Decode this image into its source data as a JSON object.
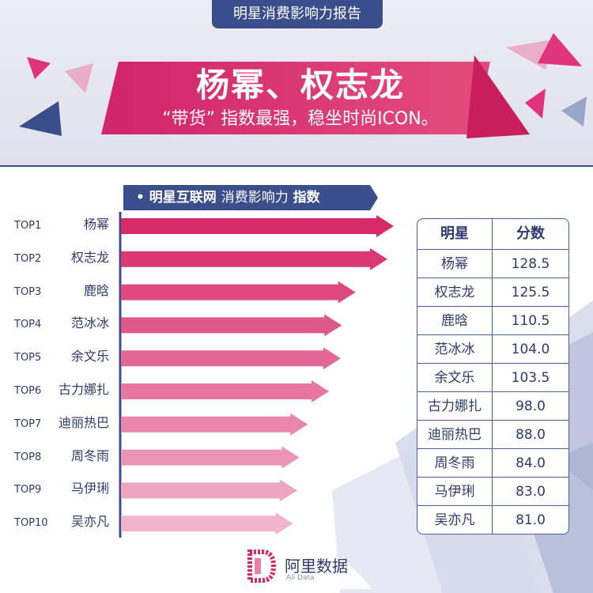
{
  "header": {
    "tag": "明星消费影响力报告",
    "title": "杨幂、权志龙",
    "subtitle": "“带货” 指数最强，稳坐时尚ICON。"
  },
  "section": {
    "bullet": "•",
    "label_bold": "明星互联网",
    "label_thin": "消费影响力",
    "label_end": "指数"
  },
  "table": {
    "col1": "明星",
    "col2": "分数"
  },
  "logo": {
    "text": "阿里数据",
    "sub": "Ali Data"
  },
  "colors": {
    "accent_pink": "#d72a6a",
    "light_pink": "#f0b4cc",
    "navy": "#3a4e8c"
  },
  "chart_data": {
    "type": "bar",
    "orientation": "horizontal",
    "categories": [
      "杨幂",
      "权志龙",
      "鹿晗",
      "范冰冰",
      "余文乐",
      "古力娜扎",
      "迪丽热巴",
      "周冬雨",
      "马伊琍",
      "吴亦凡"
    ],
    "ranks": [
      "TOP1",
      "TOP2",
      "TOP3",
      "TOP4",
      "TOP5",
      "TOP6",
      "TOP7",
      "TOP8",
      "TOP9",
      "TOP10"
    ],
    "values": [
      128.5,
      125.5,
      110.5,
      104.0,
      103.5,
      98.0,
      88.0,
      84.0,
      83.0,
      81.0
    ],
    "value_labels": [
      "128.5",
      "125.5",
      "110.5",
      "104.0",
      "103.5",
      "98.0",
      "88.0",
      "84.0",
      "83.0",
      "81.0"
    ],
    "title": "明星互联网消费影响力指数",
    "xlabel": "",
    "ylabel": "",
    "grid": false,
    "legend": "none"
  }
}
